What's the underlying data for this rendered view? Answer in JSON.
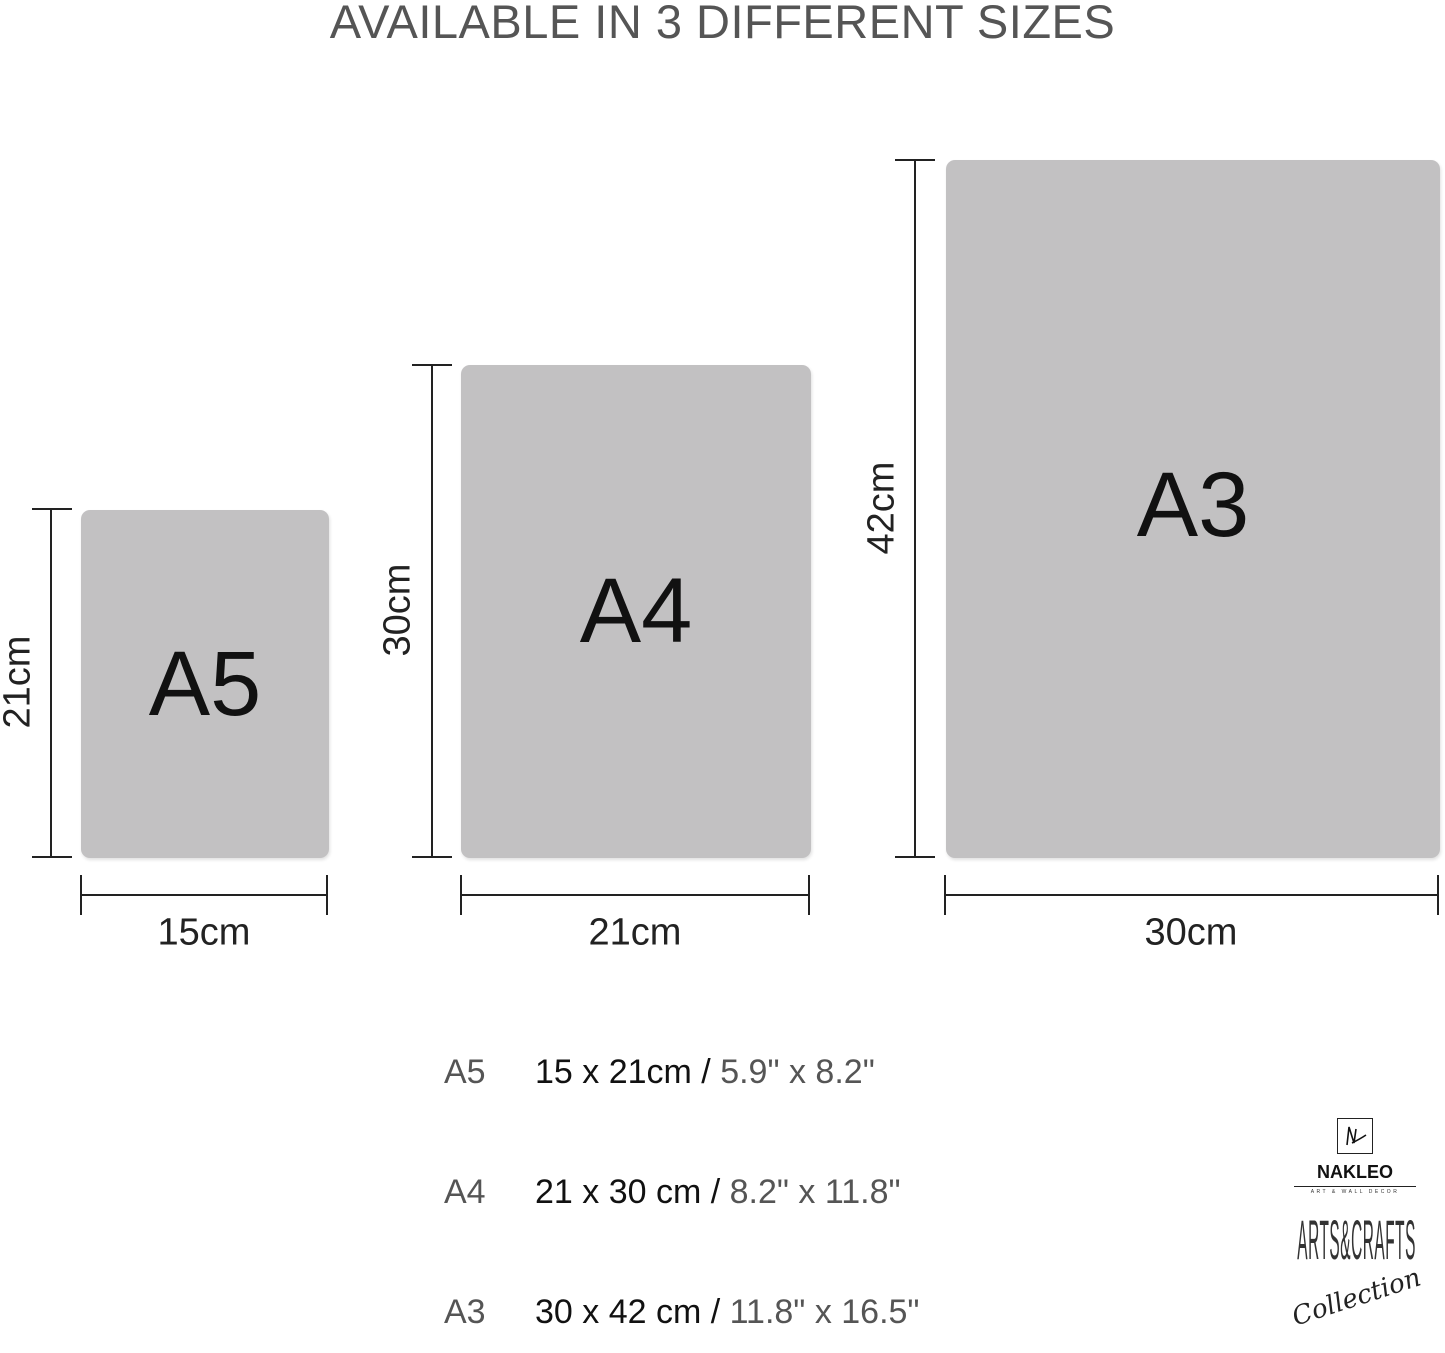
{
  "title": "AVAILABLE IN 3 DIFFERENT SIZES",
  "colors": {
    "sheet": "#c2c1c2",
    "text": "#222222",
    "muted": "#555555"
  },
  "sizes": [
    {
      "name": "A5",
      "width_label": "15cm",
      "height_label": "21cm",
      "width_cm": 15,
      "height_cm": 21
    },
    {
      "name": "A4",
      "width_label": "21cm",
      "height_label": "30cm",
      "width_cm": 21,
      "height_cm": 30
    },
    {
      "name": "A3",
      "width_label": "30cm",
      "height_label": "42cm",
      "width_cm": 30,
      "height_cm": 42
    }
  ],
  "table": [
    {
      "code": "A5",
      "cm": "15 x 21cm /",
      "inch": " 5.9\" x 8.2\""
    },
    {
      "code": "A4",
      "cm": "21 x 30 cm /",
      "inch": " 8.2\" x 11.8\""
    },
    {
      "code": "A3",
      "cm": "30 x 42 cm /",
      "inch": " 11.8\" x 16.5\""
    }
  ],
  "logo": {
    "brand": "NAKLEO",
    "tagline": "ART & WALL DECOR",
    "line1": "ARTS&CRAFTS",
    "line2": "Collection"
  }
}
